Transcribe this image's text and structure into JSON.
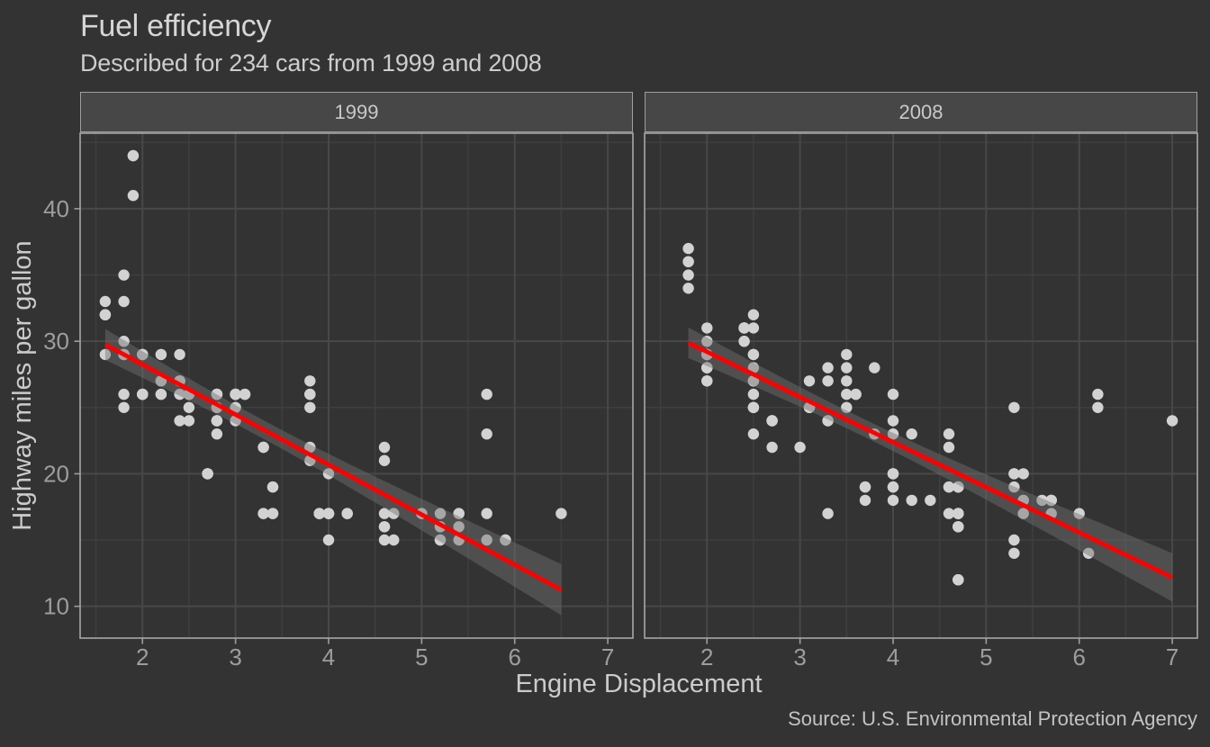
{
  "chart_data": {
    "type": "scatter",
    "title": "Fuel efficiency",
    "subtitle": "Described for 234 cars from 1999 and 2008",
    "caption": "Source: U.S. Environmental Protection Agency",
    "xlabel": "Engine Displacement",
    "ylabel": "Highway miles per gallon",
    "x_ticks": [
      2,
      3,
      4,
      5,
      6,
      7
    ],
    "y_ticks": [
      10,
      20,
      30,
      40
    ],
    "x_minor_ticks": [
      1.5,
      2.5,
      3.5,
      4.5,
      5.5,
      6.5
    ],
    "y_minor_ticks": [
      15,
      25,
      35,
      45
    ],
    "xlim": [
      1.33,
      7.27
    ],
    "ylim": [
      7.6,
      45.7
    ],
    "legend": "none",
    "grid": true,
    "smooth": {
      "method": "lm",
      "band": true
    },
    "colors": {
      "background": "#333333",
      "panel_background": "#333333",
      "grid_major": "#484848",
      "grid_minor": "#3f3f3f",
      "panel_border": "#a8a8a8",
      "tick_mark": "#9f9f9f",
      "tick_text": "#9d9d9d",
      "point": "#d2d2d2",
      "smooth_line": "#ff0000",
      "smooth_band": "rgba(112,112,112,0.45)",
      "strip_fill": "#474747",
      "strip_border": "#9f9f9f",
      "strip_text": "#c9c9c9"
    },
    "facets": [
      {
        "label": "1999",
        "points": [
          [
            1.8,
            29
          ],
          [
            1.8,
            29
          ],
          [
            2.8,
            26
          ],
          [
            2.8,
            26
          ],
          [
            1.8,
            26
          ],
          [
            1.8,
            25
          ],
          [
            2.8,
            25
          ],
          [
            2.8,
            25
          ],
          [
            2.8,
            24
          ],
          [
            5.7,
            17
          ],
          [
            5.7,
            26
          ],
          [
            5.7,
            23
          ],
          [
            5.7,
            15
          ],
          [
            6.5,
            17
          ],
          [
            2.4,
            27
          ],
          [
            3.1,
            26
          ],
          [
            2.4,
            24
          ],
          [
            3.0,
            24
          ],
          [
            3.3,
            22
          ],
          [
            3.3,
            22
          ],
          [
            3.8,
            22
          ],
          [
            3.8,
            21
          ],
          [
            3.9,
            17
          ],
          [
            3.9,
            17
          ],
          [
            5.2,
            17
          ],
          [
            5.2,
            15
          ],
          [
            3.9,
            17
          ],
          [
            5.2,
            16
          ],
          [
            5.9,
            15
          ],
          [
            5.2,
            15
          ],
          [
            5.2,
            16
          ],
          [
            5.9,
            15
          ],
          [
            4.6,
            17
          ],
          [
            5.4,
            17
          ],
          [
            4.0,
            17
          ],
          [
            4.0,
            17
          ],
          [
            4.0,
            17
          ],
          [
            5.0,
            17
          ],
          [
            4.2,
            17
          ],
          [
            4.2,
            17
          ],
          [
            4.6,
            16
          ],
          [
            4.6,
            16
          ],
          [
            5.4,
            15
          ],
          [
            3.8,
            26
          ],
          [
            3.8,
            25
          ],
          [
            4.6,
            21
          ],
          [
            4.6,
            22
          ],
          [
            1.6,
            33
          ],
          [
            1.6,
            32
          ],
          [
            1.6,
            32
          ],
          [
            1.6,
            29
          ],
          [
            1.6,
            32
          ],
          [
            2.4,
            26
          ],
          [
            2.4,
            27
          ],
          [
            2.5,
            26
          ],
          [
            2.5,
            26
          ],
          [
            2.0,
            26
          ],
          [
            2.0,
            29
          ],
          [
            4.0,
            20
          ],
          [
            4.7,
            17
          ],
          [
            4.0,
            15
          ],
          [
            4.6,
            15
          ],
          [
            5.4,
            17
          ],
          [
            5.4,
            16
          ],
          [
            4.0,
            17
          ],
          [
            5.0,
            17
          ],
          [
            2.4,
            29
          ],
          [
            2.4,
            27
          ],
          [
            3.0,
            26
          ],
          [
            3.0,
            25
          ],
          [
            3.3,
            17
          ],
          [
            3.3,
            17
          ],
          [
            3.1,
            26
          ],
          [
            3.8,
            26
          ],
          [
            3.8,
            27
          ],
          [
            2.5,
            25
          ],
          [
            2.5,
            24
          ],
          [
            2.2,
            26
          ],
          [
            2.2,
            26
          ],
          [
            2.5,
            26
          ],
          [
            2.5,
            26
          ],
          [
            2.7,
            20
          ],
          [
            2.7,
            20
          ],
          [
            3.4,
            19
          ],
          [
            3.4,
            17
          ],
          [
            2.2,
            29
          ],
          [
            2.2,
            27
          ],
          [
            3.0,
            26
          ],
          [
            3.0,
            26
          ],
          [
            2.2,
            27
          ],
          [
            2.2,
            29
          ],
          [
            3.0,
            26
          ],
          [
            3.0,
            26
          ],
          [
            1.8,
            30
          ],
          [
            1.8,
            33
          ],
          [
            1.8,
            35
          ],
          [
            4.7,
            15
          ],
          [
            2.7,
            20
          ],
          [
            2.7,
            20
          ],
          [
            3.4,
            17
          ],
          [
            3.4,
            19
          ],
          [
            2.0,
            29
          ],
          [
            2.0,
            26
          ],
          [
            2.8,
            24
          ],
          [
            1.9,
            44
          ],
          [
            2.0,
            29
          ],
          [
            2.0,
            26
          ],
          [
            2.8,
            23
          ],
          [
            2.8,
            24
          ],
          [
            1.9,
            44
          ],
          [
            1.9,
            41
          ],
          [
            2.0,
            29
          ],
          [
            2.0,
            26
          ],
          [
            1.8,
            29
          ],
          [
            1.8,
            29
          ],
          [
            2.8,
            26
          ],
          [
            2.8,
            26
          ]
        ]
      },
      {
        "label": "2008",
        "points": [
          [
            2.0,
            31
          ],
          [
            2.0,
            30
          ],
          [
            3.1,
            27
          ],
          [
            2.0,
            28
          ],
          [
            2.0,
            27
          ],
          [
            3.1,
            25
          ],
          [
            3.1,
            25
          ],
          [
            3.1,
            25
          ],
          [
            4.2,
            23
          ],
          [
            5.3,
            20
          ],
          [
            5.3,
            15
          ],
          [
            5.3,
            20
          ],
          [
            6.0,
            17
          ],
          [
            6.2,
            26
          ],
          [
            6.2,
            25
          ],
          [
            7.0,
            24
          ],
          [
            5.3,
            19
          ],
          [
            5.3,
            14
          ],
          [
            2.4,
            30
          ],
          [
            3.5,
            29
          ],
          [
            3.6,
            26
          ],
          [
            3.3,
            24
          ],
          [
            3.3,
            24
          ],
          [
            3.3,
            17
          ],
          [
            3.8,
            23
          ],
          [
            4.0,
            23
          ],
          [
            3.7,
            19
          ],
          [
            3.7,
            18
          ],
          [
            4.7,
            19
          ],
          [
            4.7,
            19
          ],
          [
            4.7,
            19
          ],
          [
            4.7,
            17
          ],
          [
            4.7,
            12
          ],
          [
            4.7,
            17
          ],
          [
            5.7,
            18
          ],
          [
            4.7,
            16
          ],
          [
            4.7,
            12
          ],
          [
            4.7,
            17
          ],
          [
            4.7,
            17
          ],
          [
            4.7,
            16
          ],
          [
            4.7,
            16
          ],
          [
            5.7,
            17
          ],
          [
            5.4,
            18
          ],
          [
            4.0,
            19
          ],
          [
            4.6,
            19
          ],
          [
            4.6,
            17
          ],
          [
            5.4,
            17
          ],
          [
            4.0,
            26
          ],
          [
            4.0,
            24
          ],
          [
            4.6,
            23
          ],
          [
            4.6,
            22
          ],
          [
            5.4,
            20
          ],
          [
            1.8,
            34
          ],
          [
            1.8,
            36
          ],
          [
            1.8,
            36
          ],
          [
            2.0,
            29
          ],
          [
            2.4,
            30
          ],
          [
            2.4,
            31
          ],
          [
            3.3,
            28
          ],
          [
            2.0,
            28
          ],
          [
            2.0,
            27
          ],
          [
            2.7,
            24
          ],
          [
            2.7,
            24
          ],
          [
            2.7,
            24
          ],
          [
            3.0,
            22
          ],
          [
            3.7,
            19
          ],
          [
            4.7,
            12
          ],
          [
            4.7,
            19
          ],
          [
            5.7,
            18
          ],
          [
            6.1,
            14
          ],
          [
            4.2,
            18
          ],
          [
            4.4,
            18
          ],
          [
            5.4,
            18
          ],
          [
            4.0,
            19
          ],
          [
            4.6,
            19
          ],
          [
            2.5,
            31
          ],
          [
            2.5,
            32
          ],
          [
            3.5,
            27
          ],
          [
            3.5,
            26
          ],
          [
            3.5,
            25
          ],
          [
            4.0,
            20
          ],
          [
            5.6,
            18
          ],
          [
            3.8,
            28
          ],
          [
            5.3,
            25
          ],
          [
            2.5,
            27
          ],
          [
            2.5,
            25
          ],
          [
            2.5,
            26
          ],
          [
            2.5,
            23
          ],
          [
            2.5,
            25
          ],
          [
            2.5,
            27
          ],
          [
            2.5,
            25
          ],
          [
            2.5,
            27
          ],
          [
            4.0,
            20
          ],
          [
            4.7,
            17
          ],
          [
            2.4,
            31
          ],
          [
            2.4,
            31
          ],
          [
            3.5,
            28
          ],
          [
            2.4,
            31
          ],
          [
            2.4,
            31
          ],
          [
            3.3,
            27
          ],
          [
            1.8,
            37
          ],
          [
            1.8,
            35
          ],
          [
            5.7,
            18
          ],
          [
            2.7,
            22
          ],
          [
            4.0,
            18
          ],
          [
            4.0,
            20
          ],
          [
            2.0,
            29
          ],
          [
            2.0,
            29
          ],
          [
            2.0,
            29
          ],
          [
            2.0,
            29
          ],
          [
            2.5,
            29
          ],
          [
            2.5,
            29
          ],
          [
            2.5,
            28
          ],
          [
            2.5,
            29
          ],
          [
            2.0,
            28
          ],
          [
            2.0,
            29
          ],
          [
            3.6,
            26
          ]
        ]
      }
    ]
  }
}
